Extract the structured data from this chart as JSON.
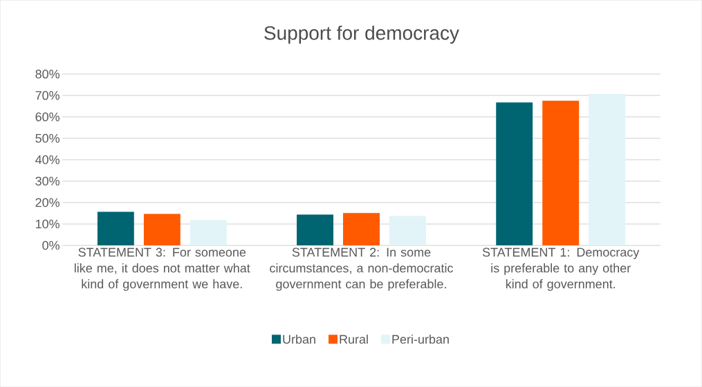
{
  "chart_data": {
    "type": "bar",
    "title": "Support for democracy",
    "categories": [
      "STATEMENT 3: For someone like me, it does not matter what kind of government we have.",
      "STATEMENT 2: In some circumstances, a non-democratic government can be preferable.",
      "STATEMENT 1: Democracy is preferable to any other kind of government."
    ],
    "series": [
      {
        "name": "Urban",
        "color": "#006570",
        "values": [
          15.7,
          14.4,
          66.7
        ]
      },
      {
        "name": "Rural",
        "color": "#ff5a00",
        "values": [
          14.7,
          15.1,
          67.6
        ]
      },
      {
        "name": "Peri-urban",
        "color": "#e2f4f8",
        "values": [
          11.8,
          13.7,
          70.7
        ]
      }
    ],
    "ylim": [
      0,
      80
    ],
    "yticks": [
      {
        "value": 0,
        "label": "0%"
      },
      {
        "value": 10,
        "label": "10%"
      },
      {
        "value": 20,
        "label": "20%"
      },
      {
        "value": 30,
        "label": "30%"
      },
      {
        "value": 40,
        "label": "40%"
      },
      {
        "value": 50,
        "label": "50%"
      },
      {
        "value": 60,
        "label": "60%"
      },
      {
        "value": 70,
        "label": "70%"
      },
      {
        "value": 80,
        "label": "80%"
      }
    ],
    "grid": "y",
    "legend": "bottom"
  }
}
